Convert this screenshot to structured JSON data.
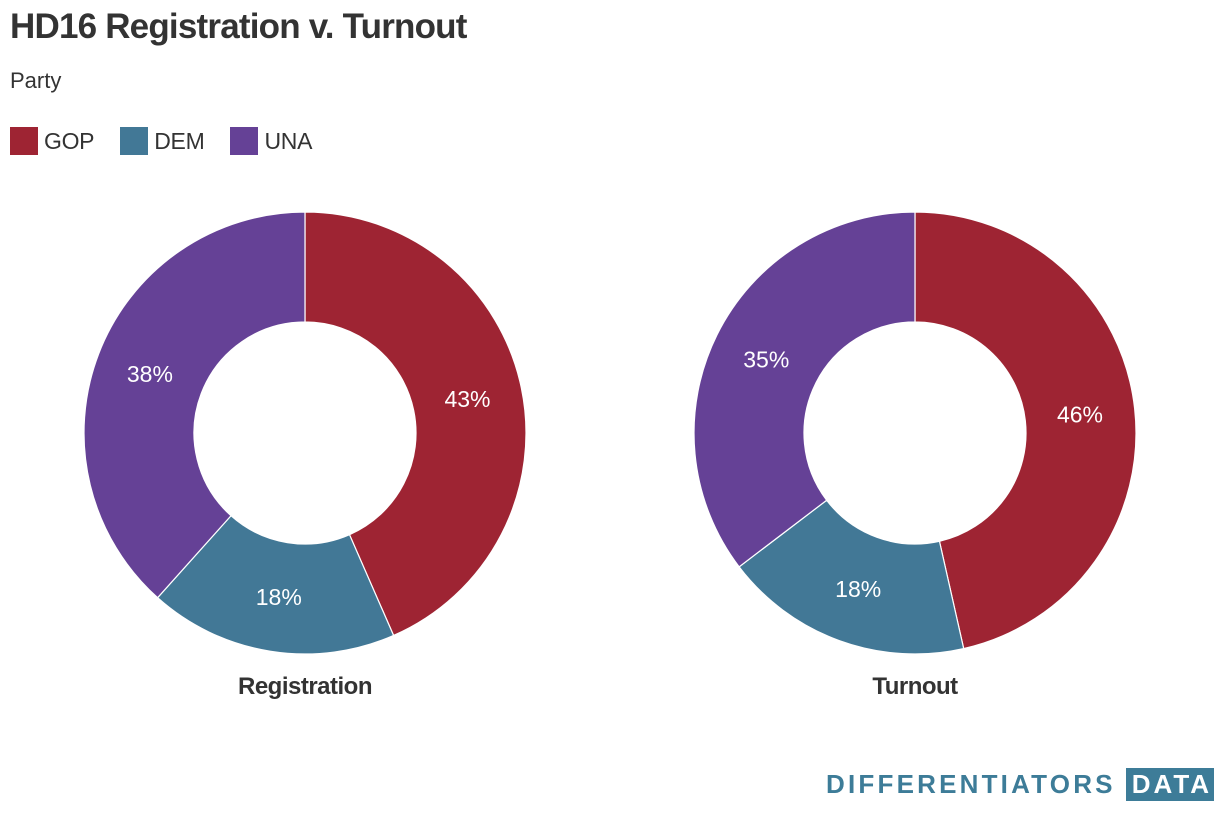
{
  "header": {
    "title": "HD16 Registration v. Turnout",
    "subtitle": "Party"
  },
  "legend": {
    "items": [
      {
        "label": "GOP",
        "color": "#9e2433"
      },
      {
        "label": "DEM",
        "color": "#427896"
      },
      {
        "label": "UNA",
        "color": "#654196"
      }
    ]
  },
  "chart_data": [
    {
      "type": "pie",
      "donut": true,
      "label": "Registration",
      "categories": [
        "GOP",
        "DEM",
        "UNA"
      ],
      "values": [
        43,
        18,
        38
      ],
      "value_labels": [
        "43%",
        "18%",
        "38%"
      ],
      "colors": [
        "#9e2433",
        "#427896",
        "#654196"
      ]
    },
    {
      "type": "pie",
      "donut": true,
      "label": "Turnout",
      "categories": [
        "GOP",
        "DEM",
        "UNA"
      ],
      "values": [
        46,
        18,
        35
      ],
      "value_labels": [
        "46%",
        "18%",
        "35%"
      ],
      "colors": [
        "#9e2433",
        "#427896",
        "#654196"
      ]
    }
  ],
  "logo": {
    "main": "DIFFERENTIATORS",
    "boxed": "DATA"
  }
}
